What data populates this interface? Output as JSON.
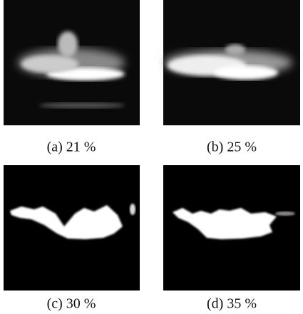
{
  "panels": [
    {
      "caption": "(a) 21 %"
    },
    {
      "caption": "(b) 25 %"
    },
    {
      "caption": "(c) 30 %"
    },
    {
      "caption": "(d) 35 %"
    }
  ]
}
